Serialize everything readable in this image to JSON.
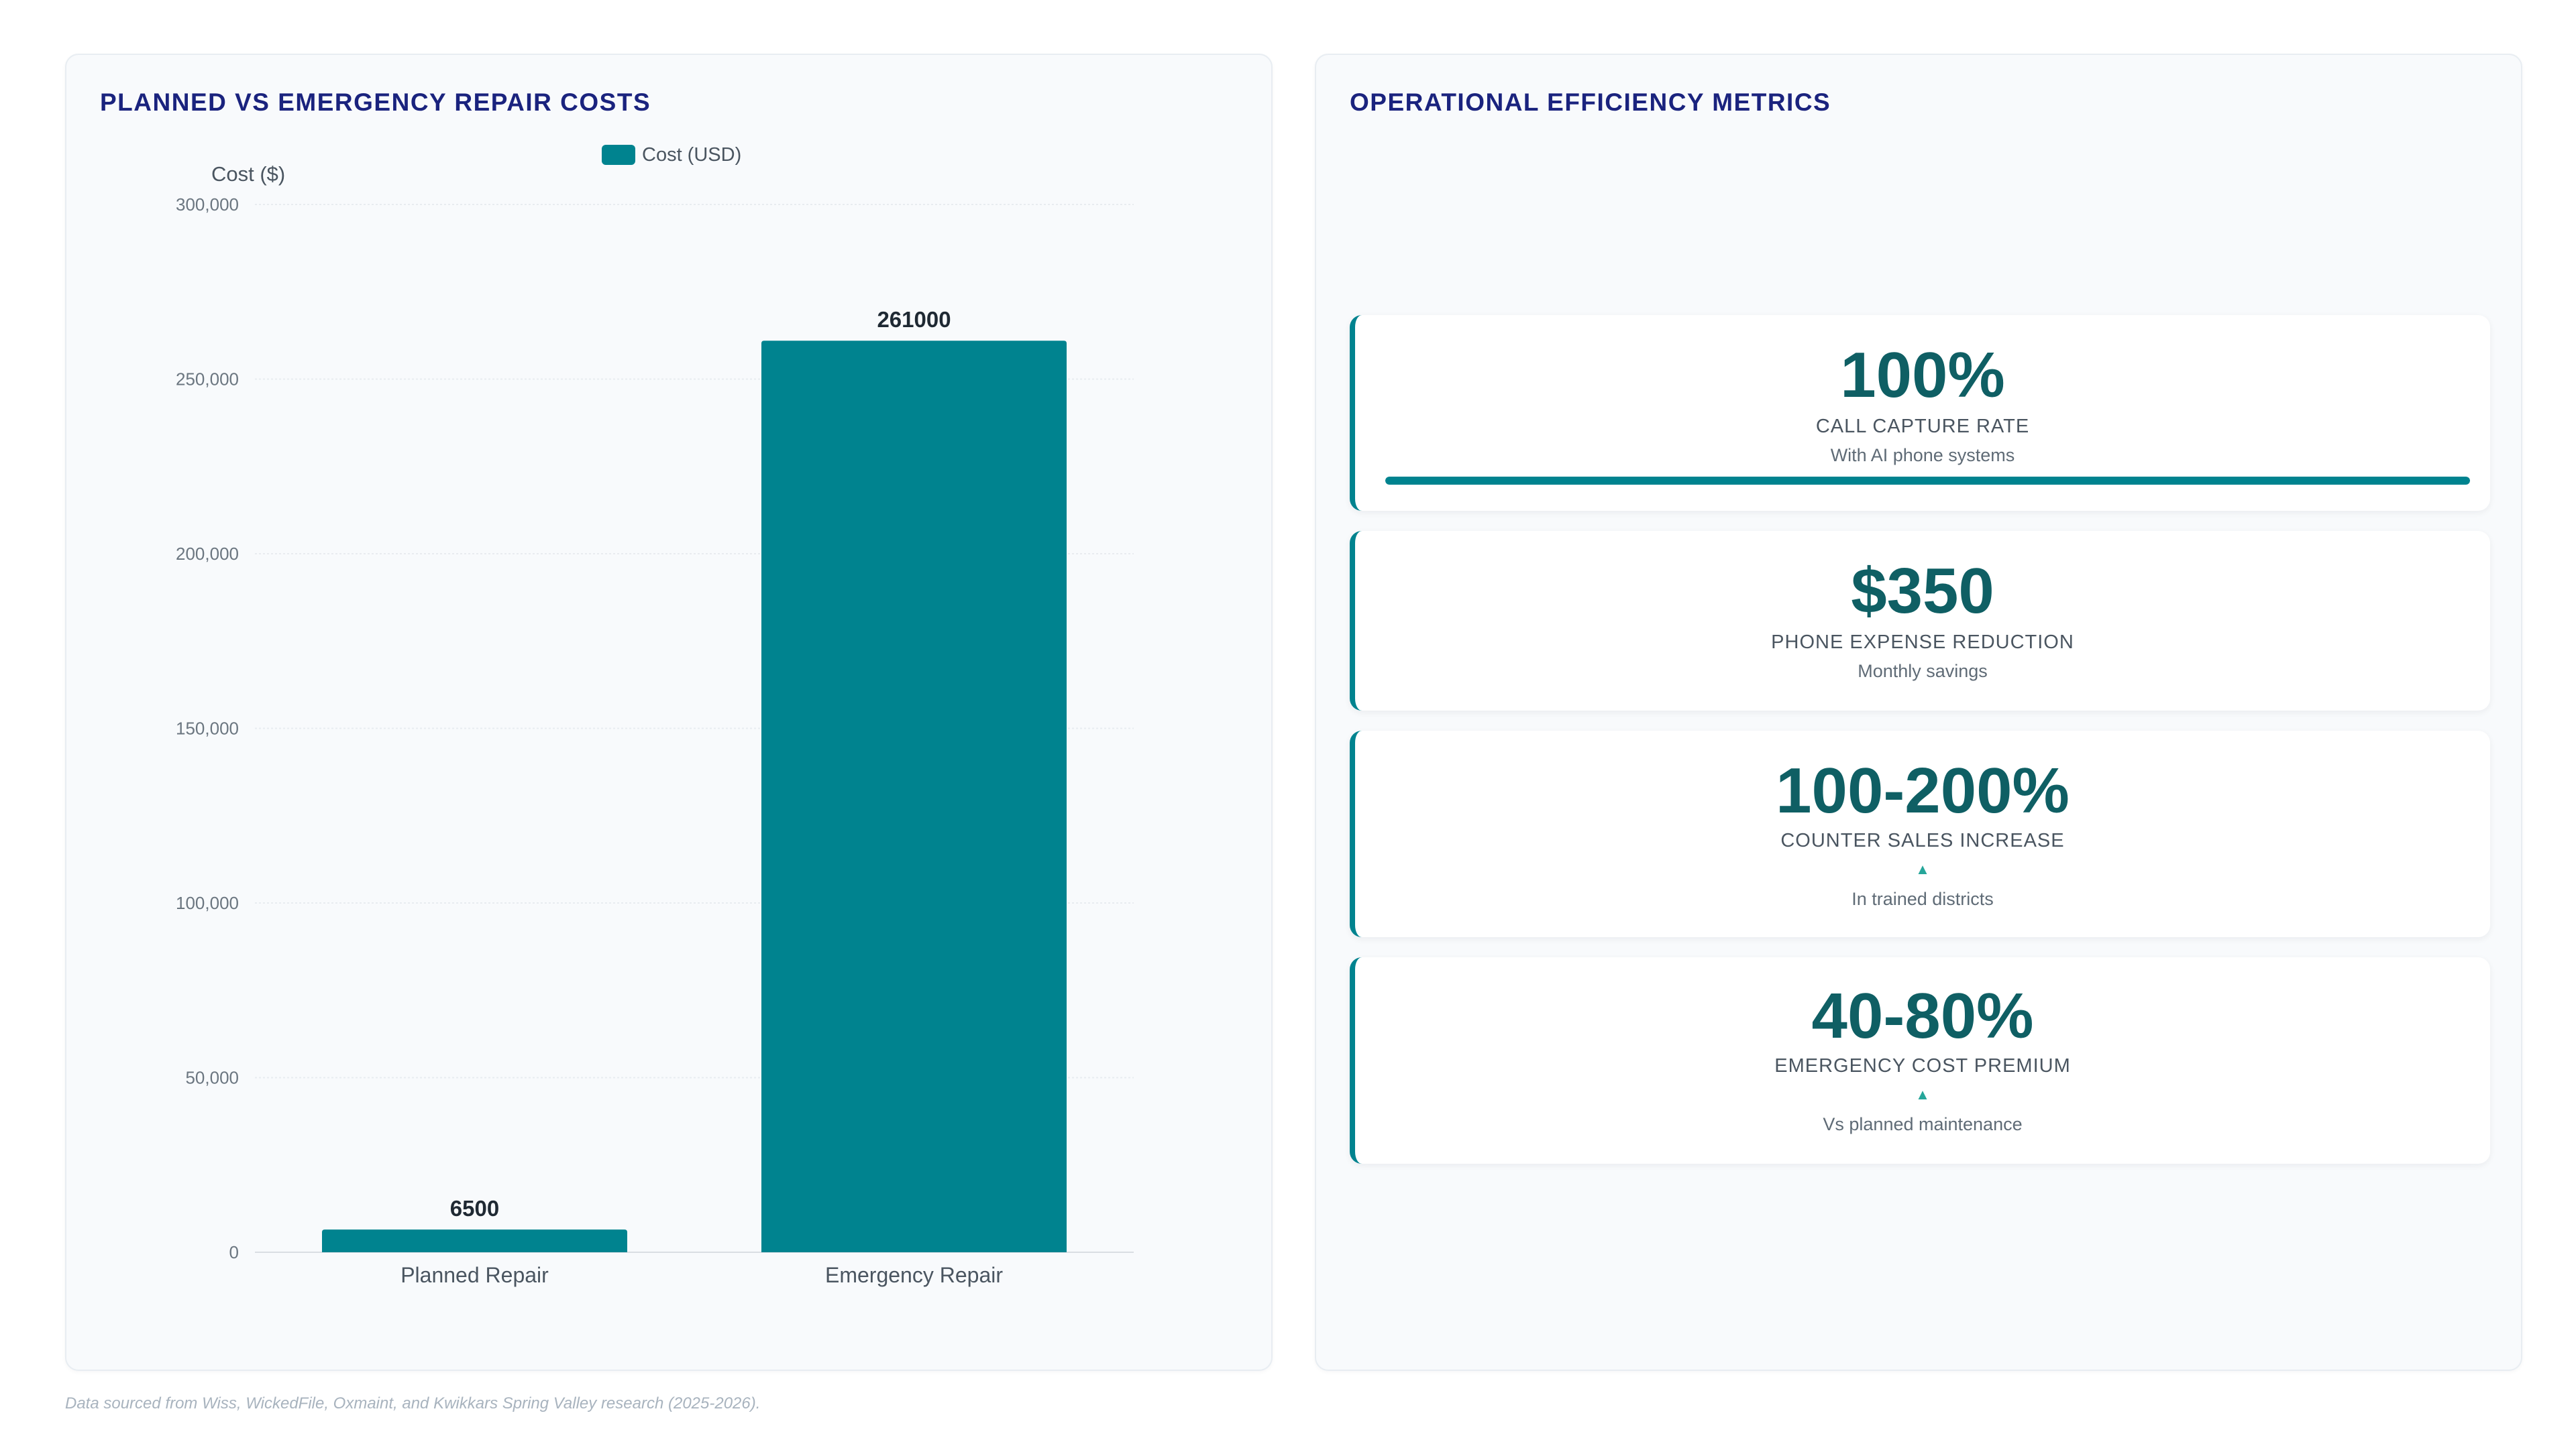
{
  "left_panel": {
    "title": "PLANNED VS EMERGENCY REPAIR COSTS"
  },
  "right_panel": {
    "title": "OPERATIONAL EFFICIENCY METRICS"
  },
  "chart_data": {
    "type": "bar",
    "title": "PLANNED VS EMERGENCY REPAIR COSTS",
    "categories": [
      "Planned Repair",
      "Emergency Repair"
    ],
    "series": [
      {
        "name": "Cost (USD)",
        "values": [
          6500,
          261000
        ]
      }
    ],
    "data_labels": [
      "6500",
      "261000"
    ],
    "ylabel": "Cost ($)",
    "xlabel": "",
    "ylim": [
      0,
      300000
    ],
    "yticks": [
      0,
      50000,
      100000,
      150000,
      200000,
      250000,
      300000
    ],
    "ytick_labels": [
      "0",
      "50,000",
      "100,000",
      "150,000",
      "200,000",
      "250,000",
      "300,000"
    ],
    "grid": true,
    "legend_position": "top-center",
    "bar_color": "#00838f"
  },
  "metrics": [
    {
      "value": "100%",
      "label": "CALL CAPTURE RATE",
      "sub": "With AI phone systems",
      "progress": 1.0
    },
    {
      "value": "$350",
      "label": "PHONE EXPENSE REDUCTION",
      "sub": "Monthly savings"
    },
    {
      "value": "100-200%",
      "label": "COUNTER SALES INCREASE",
      "arrow": "▲",
      "sub": "In trained districts"
    },
    {
      "value": "40-80%",
      "label": "EMERGENCY COST PREMIUM",
      "arrow": "▲",
      "sub": "Vs planned maintenance"
    }
  ],
  "colors": {
    "accent": "#00838f",
    "metric_value": "#0f5f64",
    "title": "#1a237e",
    "arrow": "#26a69a"
  },
  "footer": {
    "note": "Data sourced from Wiss, WickedFile, Oxmaint, and Kwikkars Spring Valley research (2025-2026)."
  }
}
